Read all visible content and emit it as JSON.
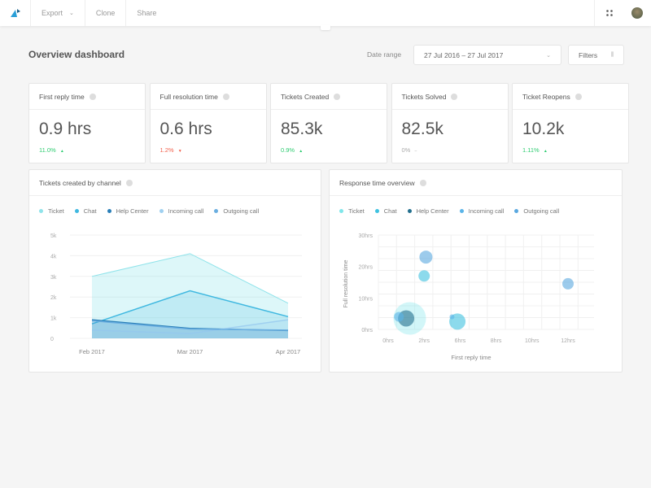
{
  "topbar": {
    "export": "Export",
    "clone": "Clone",
    "share": "Share"
  },
  "header": {
    "title": "Overview dashboard",
    "date_range_label": "Date range",
    "date_range_value": "27 Jul 2016 – 27 Jul 2017",
    "filters": "Filters"
  },
  "colors": {
    "up": "#2ecc71",
    "down": "#f2604c",
    "neutral": "#aaaaaa",
    "accent": "#35b6e0"
  },
  "metrics": [
    {
      "label": "First reply time",
      "value": "0.9 hrs",
      "delta": "11.0%",
      "trend": "up"
    },
    {
      "label": "Full resolution time",
      "value": "0.6 hrs",
      "delta": "1.2%",
      "trend": "down"
    },
    {
      "label": "Tickets Created",
      "value": "85.3k",
      "delta": "0.9%",
      "trend": "up"
    },
    {
      "label": "Tickets Solved",
      "value": "82.5k",
      "delta": "0%",
      "trend": "neutral"
    },
    {
      "label": "Ticket Reopens",
      "value": "10.2k",
      "delta": "1.11%",
      "trend": "up"
    }
  ],
  "chart_data": [
    {
      "type": "area",
      "title": "Tickets created by channel",
      "categories": [
        "Feb 2017",
        "Mar 2017",
        "Apr 2017"
      ],
      "yticks": [
        "0",
        "1k",
        "2k",
        "3k",
        "4k",
        "5k"
      ],
      "ylim": [
        0,
        5000
      ],
      "legend": "top-left",
      "series": [
        {
          "name": "Ticket",
          "color": "#8fe3ea",
          "values": [
            3000,
            4100,
            1700
          ]
        },
        {
          "name": "Chat",
          "color": "#3fb8e0",
          "values": [
            700,
            2300,
            1050
          ]
        },
        {
          "name": "Help Center",
          "color": "#2a7fb8",
          "values": [
            900,
            480,
            380
          ]
        },
        {
          "name": "Incoming call",
          "color": "#9fd0f0",
          "values": [
            400,
            230,
            900
          ]
        },
        {
          "name": "Outgoing call",
          "color": "#6aaee0",
          "values": [
            850,
            450,
            400
          ]
        }
      ]
    },
    {
      "type": "scatter",
      "title": "Response time overview",
      "xlabel": "First reply time",
      "ylabel": "Full resolution time",
      "xticks": [
        "0hrs",
        "2hrs",
        "6hrs",
        "8hrs",
        "10hrs",
        "12hrs"
      ],
      "yticks": [
        "0hrs",
        "10hrs",
        "20hrs",
        "30hrs"
      ],
      "ylim": [
        0,
        30
      ],
      "legend": "top-left",
      "series": [
        {
          "name": "Ticket",
          "color": "#7fe6ea",
          "points": [
            {
              "x": 1.2,
              "y": 3.5,
              "size": 20
            }
          ]
        },
        {
          "name": "Chat",
          "color": "#3fc2e0",
          "points": [
            {
              "x": 2.0,
              "y": 17,
              "size": 7
            },
            {
              "x": 5.7,
              "y": 2.5,
              "size": 10
            }
          ]
        },
        {
          "name": "Help Center",
          "color": "#236f8e",
          "points": [
            {
              "x": 1.0,
              "y": 3.5,
              "size": 10
            }
          ]
        },
        {
          "name": "Incoming call",
          "color": "#5ab4e8",
          "points": [
            {
              "x": 0.6,
              "y": 4,
              "size": 6
            },
            {
              "x": 5.1,
              "y": 4,
              "size": 3
            }
          ]
        },
        {
          "name": "Outgoing call",
          "color": "#5aa8e0",
          "points": [
            {
              "x": 2.2,
              "y": 23,
              "size": 8
            },
            {
              "x": 12,
              "y": 14.5,
              "size": 7
            }
          ]
        }
      ]
    }
  ]
}
